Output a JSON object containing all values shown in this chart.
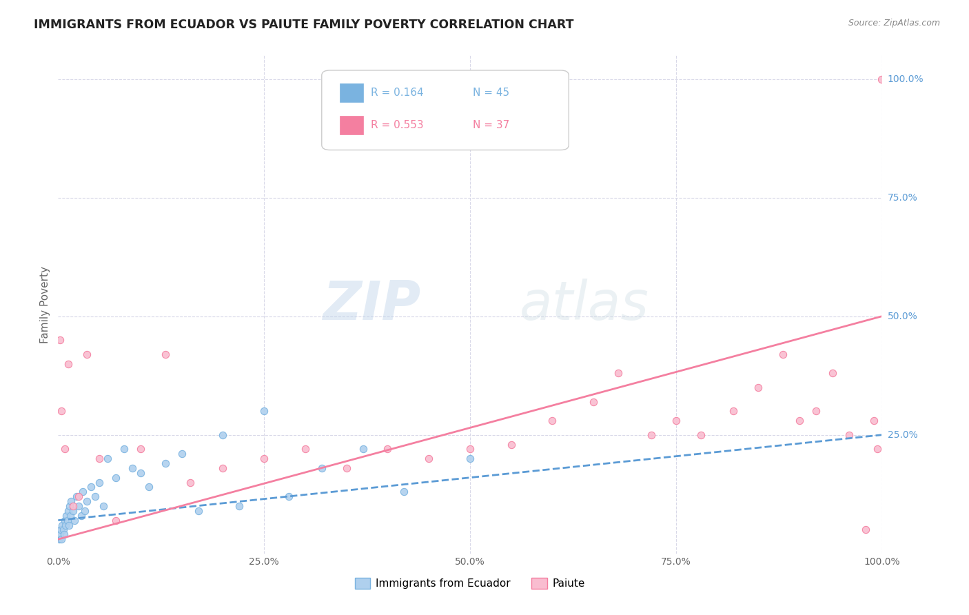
{
  "title": "IMMIGRANTS FROM ECUADOR VS PAIUTE FAMILY POVERTY CORRELATION CHART",
  "source": "Source: ZipAtlas.com",
  "ylabel": "Family Poverty",
  "xlim": [
    0,
    100
  ],
  "ylim": [
    0,
    105
  ],
  "legend_entries": [
    {
      "label": "Immigrants from Ecuador",
      "color": "#7ab3e0",
      "R": "0.164",
      "N": "45"
    },
    {
      "label": "Paiute",
      "color": "#f47fa0",
      "R": "0.553",
      "N": "37"
    }
  ],
  "blue_scatter_x": [
    0.1,
    0.2,
    0.3,
    0.4,
    0.5,
    0.6,
    0.7,
    0.8,
    0.9,
    1.0,
    1.1,
    1.2,
    1.3,
    1.4,
    1.5,
    1.6,
    1.8,
    2.0,
    2.2,
    2.5,
    2.8,
    3.0,
    3.2,
    3.5,
    4.0,
    4.5,
    5.0,
    5.5,
    6.0,
    7.0,
    8.0,
    9.0,
    10.0,
    11.0,
    13.0,
    15.0,
    17.0,
    20.0,
    22.0,
    25.0,
    28.0,
    32.0,
    37.0,
    42.0,
    50.0
  ],
  "blue_scatter_y": [
    3,
    4,
    5,
    3,
    6,
    5,
    4,
    7,
    6,
    8,
    7,
    9,
    6,
    10,
    8,
    11,
    9,
    7,
    12,
    10,
    8,
    13,
    9,
    11,
    14,
    12,
    15,
    10,
    20,
    16,
    22,
    18,
    17,
    14,
    19,
    21,
    9,
    25,
    10,
    30,
    12,
    18,
    22,
    13,
    20
  ],
  "pink_scatter_x": [
    0.2,
    0.4,
    0.8,
    1.2,
    1.8,
    2.5,
    3.5,
    5.0,
    7.0,
    10.0,
    13.0,
    16.0,
    20.0,
    25.0,
    30.0,
    35.0,
    40.0,
    45.0,
    50.0,
    55.0,
    60.0,
    65.0,
    68.0,
    72.0,
    75.0,
    78.0,
    82.0,
    85.0,
    88.0,
    90.0,
    92.0,
    94.0,
    96.0,
    98.0,
    99.0,
    99.5,
    100.0
  ],
  "pink_scatter_y": [
    45,
    30,
    22,
    40,
    10,
    12,
    42,
    20,
    7,
    22,
    42,
    15,
    18,
    20,
    22,
    18,
    22,
    20,
    22,
    23,
    28,
    32,
    38,
    25,
    28,
    25,
    30,
    35,
    42,
    28,
    30,
    38,
    25,
    5,
    28,
    22,
    100
  ],
  "blue_line_x": [
    0,
    100
  ],
  "blue_line_y": [
    7,
    25
  ],
  "pink_line_x": [
    0,
    100
  ],
  "pink_line_y": [
    3,
    50
  ],
  "blue_line_color": "#5b9bd5",
  "pink_line_color": "#f47fa0",
  "blue_scatter_color": "#afd0ee",
  "pink_scatter_color": "#f9bdd0",
  "blue_edge_color": "#7ab3e0",
  "pink_edge_color": "#f47fa0",
  "watermark_zip": "ZIP",
  "watermark_atlas": "atlas",
  "background_color": "#ffffff",
  "grid_color": "#d8d8e8",
  "right_tick_color": "#5b9bd5",
  "title_color": "#222222",
  "source_color": "#888888",
  "ylabel_color": "#666666"
}
